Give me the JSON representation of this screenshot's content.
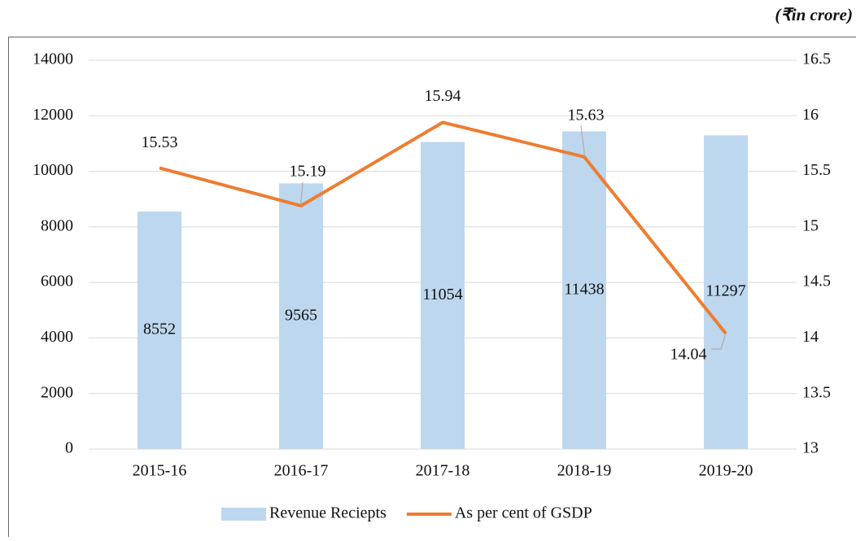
{
  "chart_data": {
    "type": "combo",
    "unit_note": "(₹in crore)",
    "categories": [
      "2015-16",
      "2016-17",
      "2017-18",
      "2018-19",
      "2019-20"
    ],
    "series": [
      {
        "name": "Revenue Reciepts",
        "type": "bar",
        "color": "#bdd7ee",
        "values": [
          8552,
          9565,
          11054,
          11438,
          11297
        ]
      },
      {
        "name": "As per cent of GSDP",
        "type": "line",
        "axis": "y2",
        "color": "#ed7d31",
        "values": [
          15.53,
          15.19,
          15.94,
          15.63,
          14.04
        ]
      }
    ],
    "ylim": [
      0,
      14000
    ],
    "yticks": [
      0,
      2000,
      4000,
      6000,
      8000,
      10000,
      12000,
      14000
    ],
    "y2lim": [
      13,
      16.5
    ],
    "y2ticks": [
      13,
      13.5,
      14,
      14.5,
      15,
      15.5,
      16,
      16.5
    ],
    "grid": true,
    "legend": "bottom"
  }
}
